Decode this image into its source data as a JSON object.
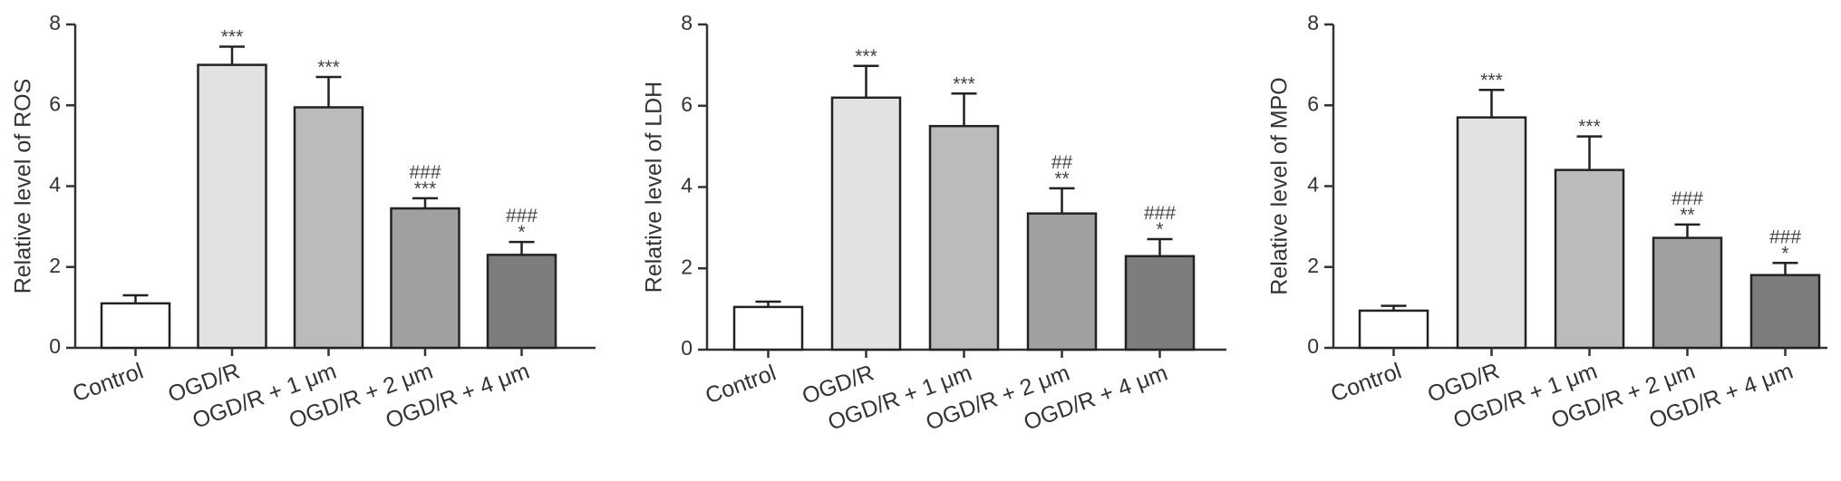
{
  "chart_data": [
    {
      "type": "bar",
      "ylabel": "Relative level of ROS",
      "categories": [
        "Control",
        "OGD/R",
        "OGD/R + 1 μm",
        "OGD/R + 2 μm",
        "OGD/R + 4 μm"
      ],
      "values": [
        1.1,
        7.0,
        5.95,
        3.45,
        2.3
      ],
      "errors": [
        0.2,
        0.45,
        0.75,
        0.25,
        0.32
      ],
      "annotations": [
        [],
        [
          "***"
        ],
        [
          "***"
        ],
        [
          "###",
          "***"
        ],
        [
          "###",
          "*"
        ]
      ],
      "ylim": [
        0,
        8
      ],
      "yticks": [
        0,
        2,
        4,
        6,
        8
      ],
      "bar_colors": [
        "#ffffff",
        "#e2e2e2",
        "#bbbbbb",
        "#a0a0a0",
        "#7d7d7d"
      ],
      "grid": false
    },
    {
      "type": "bar",
      "ylabel": "Relative level of LDH",
      "categories": [
        "Control",
        "OGD/R",
        "OGD/R + 1 μm",
        "OGD/R + 2 μm",
        "OGD/R + 4 μm"
      ],
      "values": [
        1.05,
        6.2,
        5.5,
        3.35,
        2.3
      ],
      "errors": [
        0.13,
        0.78,
        0.8,
        0.62,
        0.42
      ],
      "annotations": [
        [],
        [
          "***"
        ],
        [
          "***"
        ],
        [
          "##",
          "**"
        ],
        [
          "###",
          "*"
        ]
      ],
      "ylim": [
        0,
        8
      ],
      "yticks": [
        0,
        2,
        4,
        6,
        8
      ],
      "bar_colors": [
        "#ffffff",
        "#e2e2e2",
        "#bbbbbb",
        "#a0a0a0",
        "#7d7d7d"
      ],
      "grid": false
    },
    {
      "type": "bar",
      "ylabel": "Relative level of MPO",
      "categories": [
        "Control",
        "OGD/R",
        "OGD/R + 1 μm",
        "OGD/R + 2 μm",
        "OGD/R + 4 μm"
      ],
      "values": [
        0.92,
        5.7,
        4.4,
        2.72,
        1.8
      ],
      "errors": [
        0.12,
        0.68,
        0.83,
        0.33,
        0.3
      ],
      "annotations": [
        [],
        [
          "***"
        ],
        [
          "***"
        ],
        [
          "###",
          "**"
        ],
        [
          "###",
          "*"
        ]
      ],
      "ylim": [
        0,
        8
      ],
      "yticks": [
        0,
        2,
        4,
        6,
        8
      ],
      "bar_colors": [
        "#ffffff",
        "#e2e2e2",
        "#bbbbbb",
        "#a0a0a0",
        "#7d7d7d"
      ],
      "grid": false
    }
  ]
}
